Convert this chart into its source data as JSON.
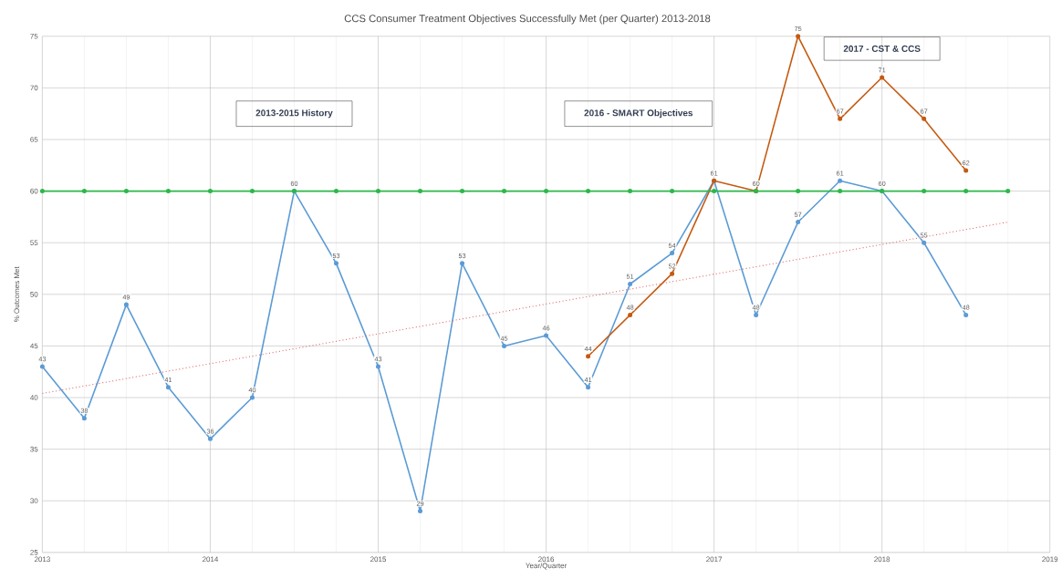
{
  "chart_data": {
    "type": "line",
    "title": "CCS Consumer  Treatment Objectives Successfully Met (per Quarter) 2013-2018",
    "xlabel": "Year/Quarter",
    "ylabel": "% Outcomes Met",
    "xlim": [
      2013,
      2019
    ],
    "xticks": [
      2013,
      2014,
      2015,
      2016,
      2017,
      2018,
      2019
    ],
    "ylim": [
      25,
      75
    ],
    "yticks": [
      25,
      30,
      35,
      40,
      45,
      50,
      55,
      60,
      65,
      70,
      75
    ],
    "grid": true,
    "marker": "circle",
    "line_style": "solid",
    "annotations": [
      "2013-2015 History",
      "2016 - SMART Objectives",
      "2017 - CST & CCS"
    ],
    "series": [
      {
        "color": "#2db84a",
        "x": [
          2013,
          2013.25,
          2013.5,
          2013.75,
          2014,
          2014.25,
          2014.5,
          2014.75,
          2015,
          2015.25,
          2015.5,
          2015.75,
          2016,
          2016.25,
          2016.5,
          2016.75,
          2017,
          2017.25,
          2017.5,
          2017.75,
          2018,
          2018.25,
          2018.5,
          2018.75
        ],
        "values": [
          60,
          60,
          60,
          60,
          60,
          60,
          60,
          60,
          60,
          60,
          60,
          60,
          60,
          60,
          60,
          60,
          60,
          60,
          60,
          60,
          60,
          60,
          60,
          60
        ]
      },
      {
        "color": "#5b9bd5",
        "x": [
          2013,
          2013.25,
          2013.5,
          2013.75,
          2014,
          2014.25,
          2014.5,
          2014.75,
          2015,
          2015.25,
          2015.5,
          2015.75,
          2016,
          2016.25,
          2016.5,
          2016.75,
          2017,
          2017.25,
          2017.5,
          2017.75,
          2018,
          2018.25,
          2018.5
        ],
        "values": [
          43,
          38,
          49,
          41,
          36,
          40,
          60,
          53,
          43,
          29,
          53,
          45,
          46,
          41,
          51,
          54,
          61,
          48,
          57,
          61,
          60,
          55,
          48
        ],
        "value_labels": [
          "43",
          "38",
          "49",
          "41",
          "36",
          "40",
          "60",
          "53",
          "43",
          "29",
          "53",
          "45",
          "46",
          "41",
          "51",
          "54",
          null,
          "48",
          "57",
          "61",
          "60",
          "55",
          "48"
        ]
      },
      {
        "color": "#c55a11",
        "x": [
          2016.25,
          2016.5,
          2016.75,
          2017,
          2017.25,
          2017.5,
          2017.75,
          2018,
          2018.25,
          2018.5
        ],
        "values": [
          44,
          48,
          52,
          61,
          60,
          75,
          67,
          71,
          67,
          62
        ],
        "value_labels": [
          "44",
          "48",
          "52",
          "61",
          "60",
          "75",
          "67",
          "71",
          "67",
          "62"
        ]
      },
      {
        "color": "#e06666",
        "x": [
          2013,
          2018.75
        ],
        "values": [
          40.4,
          57
        ],
        "marker": "none",
        "line_style": "dotted"
      }
    ]
  }
}
